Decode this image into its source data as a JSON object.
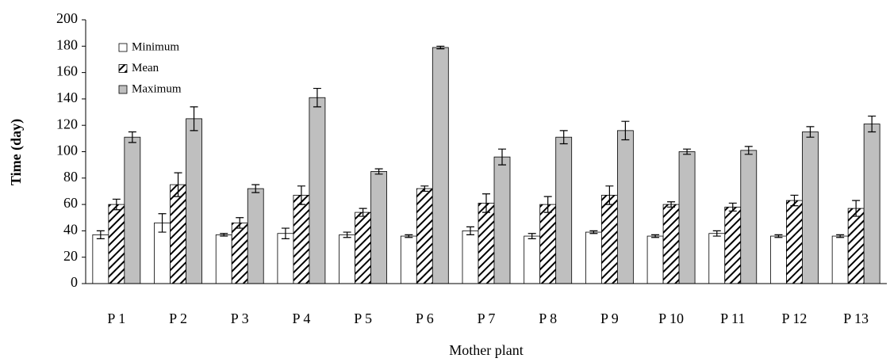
{
  "chart_data": {
    "type": "bar",
    "xlabel": "Mother plant",
    "ylabel": "Time (day)",
    "categories": [
      "P 1",
      "P 2",
      "P 3",
      "P 4",
      "P 5",
      "P 6",
      "P 7",
      "P 8",
      "P 9",
      "P 10",
      "P 11",
      "P 12",
      "P 13"
    ],
    "series": [
      {
        "name": "Minimum",
        "color": "#ffffff",
        "values": [
          37,
          46,
          37,
          38,
          37,
          36,
          40,
          36,
          39,
          36,
          38,
          36,
          36
        ],
        "errors": [
          3,
          7,
          1,
          4,
          2,
          1,
          3,
          2,
          1,
          1,
          2,
          1,
          1
        ]
      },
      {
        "name": "Mean",
        "color": "#000000",
        "hatch": true,
        "values": [
          60,
          75,
          46,
          67,
          54,
          72,
          61,
          60,
          67,
          60,
          58,
          63,
          57
        ],
        "errors": [
          4,
          9,
          4,
          7,
          3,
          2,
          7,
          6,
          7,
          2,
          3,
          4,
          6
        ]
      },
      {
        "name": "Maximum",
        "color": "#bfbfbf",
        "values": [
          111,
          125,
          72,
          141,
          85,
          179,
          96,
          111,
          116,
          100,
          101,
          115,
          121
        ],
        "errors": [
          4,
          9,
          3,
          7,
          2,
          1,
          6,
          5,
          7,
          2,
          3,
          4,
          6
        ]
      }
    ],
    "ylim": [
      0,
      200
    ],
    "yticks": [
      0,
      20,
      40,
      60,
      80,
      100,
      120,
      140,
      160,
      180,
      200
    ],
    "grid": false,
    "legend": "upper left"
  }
}
